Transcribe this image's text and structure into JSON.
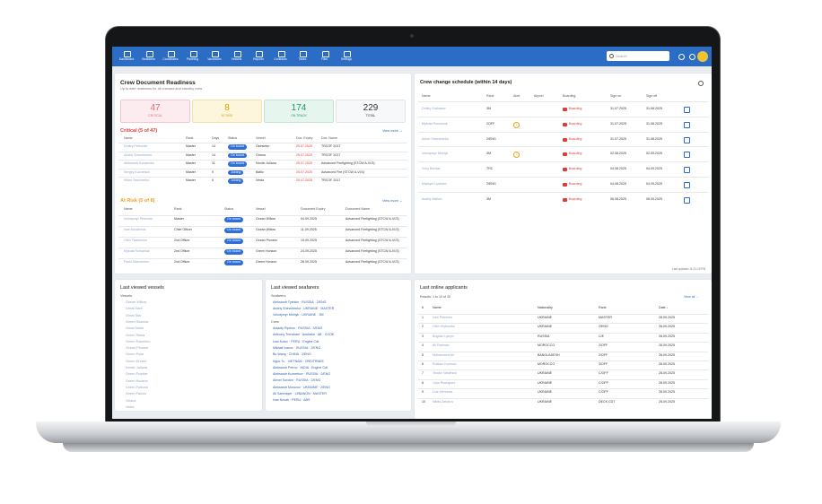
{
  "nav": {
    "items": [
      "Dashboard",
      "Seafarers",
      "Candidates",
      "Planning",
      "Vacancies",
      "Vessels",
      "Reports",
      "Contracts",
      "Tasks",
      "Files",
      "Settings"
    ],
    "search": "Search"
  },
  "readiness": {
    "title": "Crew Document Readiness",
    "subtitle": "Up to date readiness for all onboard and standby crew",
    "stats": [
      {
        "value": "47",
        "label": "CRITICAL"
      },
      {
        "value": "8",
        "label": "AT RISK"
      },
      {
        "value": "174",
        "label": "ON TRACK"
      },
      {
        "value": "229",
        "label": "TOTAL"
      }
    ],
    "critical": {
      "title": "Critical (5 of 47)",
      "more": "View more →",
      "headers": [
        "Name",
        "Rank",
        "Days",
        "Status",
        "Vessel",
        "Doc. Expiry",
        "Doc. Name"
      ],
      "rows": [
        [
          "Dmitry Petrovich",
          "Master",
          "14",
          "On board",
          "Ostravinn",
          "25.07.2025",
          "TRCOF 2017"
        ],
        [
          "Andriy Shevchenko",
          "Master",
          "14",
          "On board",
          "Oriana",
          "25.07.2025",
          "TRCOF 2017"
        ],
        [
          "Aleksandr Kovalenko",
          "Master",
          "11",
          "On board",
          "Nordic Juliana",
          "25.07.2025",
          "Advanced Firefighting (STCW A-VI/3)"
        ],
        [
          "Sergey Kuznetsov",
          "Master",
          "9",
          "Joining",
          "Baltic",
          "25.07.2025",
          "Advanced Fire (STCW A-VI/3)"
        ],
        [
          "Viktor Savchenko",
          "Master",
          "6",
          "Joining",
          "Vesta",
          "25.07.2025",
          "TRCOF 2017"
        ]
      ]
    },
    "at_risk": {
      "title": "At Risk (5 of 8)",
      "more": "View more →",
      "headers": [
        "Name",
        "Rank",
        "Status",
        "Vessel",
        "Document Expiry",
        "Document Name"
      ],
      "rows": [
        [
          "Volodymyr Petrenko",
          "Master",
          "On board",
          "Ocean Willow",
          "04.09.2025",
          "Advanced Firefighting (STCW A-VI/3)"
        ],
        [
          "Ivan Kovalchuk",
          "Chief Officer",
          "On board",
          "Ocean Willow",
          "11.09.2025",
          "Advanced Firefighting (STCW A-VI/3)"
        ],
        [
          "Oleh Tkachenko",
          "2nd Officer",
          "On board",
          "Ocean Pioneer",
          "19.09.2025",
          "Advanced Firefighting (STCW A-VI/3)"
        ],
        [
          "Mykola Romaniuk",
          "2nd Officer",
          "On board",
          "Green Horizon",
          "24.09.2025",
          "Advanced Firefighting (STCW A-VI/3)"
        ],
        [
          "Pavlo Marchenko",
          "2nd Officer",
          "On board",
          "Green Horizon",
          "28.09.2025",
          "Advanced Firefighting (STCW A-VI/3)"
        ]
      ]
    }
  },
  "crew_change": {
    "title": "Crew change schedule (within 14 days)",
    "headers": [
      "Name",
      "Rank",
      "Alert",
      "Airport",
      "Boarding",
      "Sign on",
      "Sign off"
    ],
    "rows": [
      [
        "Dmitry Sukharev",
        "3M",
        "",
        "",
        "Boarding",
        "31.07.2025",
        "31.08.2025"
      ],
      [
        "Mykola Romaniuk",
        "2OFF",
        "!",
        "",
        "Boarding",
        "31.07.2025",
        "31.08.2025"
      ],
      [
        "Anton Shevchenko",
        "2/ENG",
        "",
        "",
        "Boarding",
        "31.07.2025",
        "31.08.2025"
      ],
      [
        "Volodymyr Melnyk",
        "3M",
        "!",
        "",
        "Boarding",
        "02.08.2025",
        "02.09.2025"
      ],
      [
        "Yuriy Bondar",
        "TRC",
        "",
        "",
        "Boarding",
        "04.08.2025",
        "04.09.2025"
      ],
      [
        "Maksym Lysenko",
        "2/ENG",
        "",
        "",
        "Boarding",
        "04.08.2025",
        "04.09.2025"
      ],
      [
        "Andriy Zaitsev",
        "3M",
        "",
        "",
        "Boarding",
        "06.08.2025",
        "06.09.2025"
      ]
    ],
    "footer": "Last updated 11:21:15 PM"
  },
  "vessels": {
    "title": "Last viewed vessels",
    "label": "Vessels",
    "items": [
      "Ocean Willow",
      "Great Hare",
      "Great Star",
      "Green Shadow",
      "Great Dawn",
      "Green Stella",
      "Green Palomino",
      "Ocean Pioneer",
      "Green Polar",
      "Green Dream",
      "Nordic Juliana",
      "Green Frontier",
      "Green Horizon",
      "Green Fortuna",
      "Green Falcon",
      "Oriana",
      "Vesta"
    ]
  },
  "seafarers": {
    "title": "Last viewed seafarers",
    "label_seafarers": "Seafarers",
    "seafarers": [
      "Aleksandr Tyshkin · RUSSIA · 2/ENG",
      "Andriy Shevchenko · UKRAINE · MASTER",
      "Volodymyr Melnyk · UKRAINE · 3M"
    ],
    "label_crew": "Crew",
    "crew": [
      "Arkadiy Ryzhov · RUSSIA · 3/ENG",
      "Anthony Trenshaw · Australia · AB · COOK",
      "Ivan Kotov · PERU · Engine Cdt.",
      "Mikhail Ivanov · RUSSIA · 2/ENG",
      "Bo Wang · CHINA · 2/ENG",
      "Ngoc Tu · VIETNAM · ORD/TRNEE",
      "Aleksandr Petrov · INDIA · Engine Cdt.",
      "Aleksandr Kuznetsov · RUSSIA · 2/ENG",
      "Alexei Sorokin · RUSSIA · 2/ENG",
      "Aleksandr Morozov · UKRAINE · 2/ENG",
      "Ali Sanmayer · LEBANON · MASTER",
      "Ivan Novak · PERU · ABS"
    ]
  },
  "applicants": {
    "title": "Last online applicants",
    "subtitle": "Results: 1 to 10 of 30",
    "more": "View all →",
    "headers": [
      "#",
      "Name",
      "Nationality",
      "Rank",
      "Date ↓"
    ],
    "rows": [
      [
        "1",
        "Ivan Petrenko",
        "UKRAINE",
        "MASTER",
        "28.09.2025"
      ],
      [
        "2",
        "Oleh Hrytsenko",
        "UKRAINE",
        "2/ENG",
        "28.09.2025"
      ],
      [
        "3",
        "Bogdan Lytvyn",
        "RUSSIA",
        "C/E",
        "28.09.2025"
      ],
      [
        "4",
        "Ali Rahman",
        "MOROCCO",
        "2/OFF",
        "28.09.2025"
      ],
      [
        "5",
        "Mohammed Ali",
        "BANGLADESH",
        "2/OFF",
        "28.09.2025"
      ],
      [
        "6",
        "Rustam Karimov",
        "MOROCCO",
        "3/OFF",
        "28.09.2025"
      ],
      [
        "7",
        "Teodor Vasilescu",
        "UKRAINE",
        "C/OFF",
        "28.09.2025"
      ],
      [
        "8",
        "Juan Rodriguez",
        "UKRAINE",
        "C/OFF",
        "28.09.2025"
      ],
      [
        "9",
        "Luis Mendoza",
        "UKRAINE",
        "C/OFF",
        "28.09.2025"
      ],
      [
        "10",
        "Nikita Zaharov",
        "UKRAINE",
        "DECK CDT",
        "28.09.2025"
      ]
    ]
  }
}
